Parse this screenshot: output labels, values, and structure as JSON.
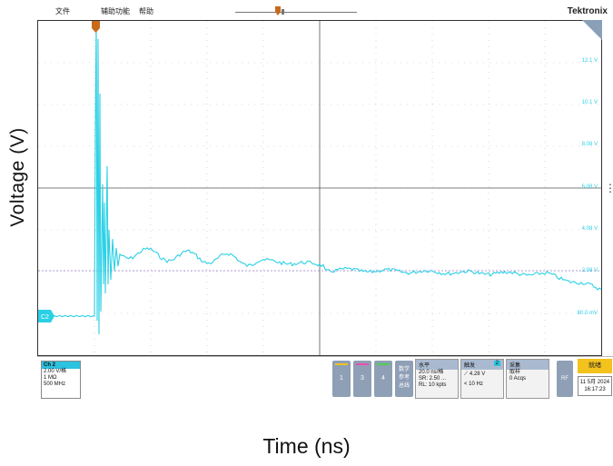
{
  "menu": {
    "file": "文件",
    "utility": "辅助功能",
    "help": "帮助"
  },
  "brand": "Tektronix",
  "axes": {
    "ylabel": "Voltage (V)",
    "xlabel": "Time (ns)"
  },
  "scale_labels": [
    "12.1 V",
    "10.1 V",
    "8.08 V",
    "6.08 V",
    "4.08 V",
    "2.08 V",
    "80.0 mV"
  ],
  "channel_marker": "C2",
  "channel_box": {
    "title": "Ch 2",
    "scale": "2.00 V/格",
    "impedance": "1 MΩ",
    "bandwidth": "500 MHz"
  },
  "channel_buttons": [
    "1",
    "3",
    "4"
  ],
  "math_ref_bus": {
    "l1": "数学",
    "l2": "参考",
    "l3": "总线"
  },
  "horizontal": {
    "title": "水平",
    "scale": "20.0 ns/格",
    "sr": "SR: 2.50 ...",
    "rl": "RL: 10 kpts"
  },
  "trigger": {
    "title": "触发",
    "channel": "2",
    "level": "4.28 V",
    "freq": "< 10 Hz"
  },
  "acquisition": {
    "title": "采集",
    "mode": "取样",
    "count": "0 Acqs"
  },
  "rf_label": "RF",
  "stop_label": "就绪",
  "date": "11 5月 2024",
  "time": "16:17:23",
  "colors": {
    "trace": "#2bd0e6",
    "ref_line": "#9a7cc8",
    "grid": "#b8b8b8",
    "trigger_marker": "#c76a1a"
  }
}
